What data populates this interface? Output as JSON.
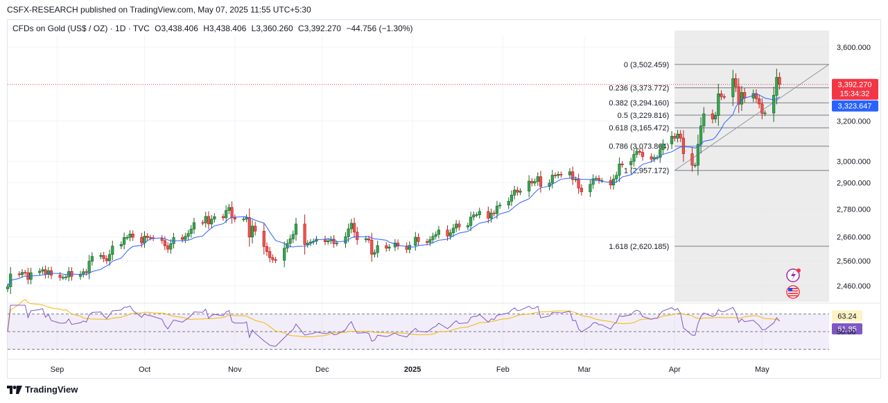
{
  "header": {
    "published_by": "CSFX-RESEARCH published on TradingView.com, May 07, 2025 11:55 UTC+5:30"
  },
  "legend": {
    "symbol": "CFDs on Gold (US$ / OZ) · 1D · TVC",
    "open": "O3,438.406",
    "high": "H3,438.406",
    "low": "L3,360.260",
    "close": "C3,392.270",
    "change": "−44.756 (−1.30%)"
  },
  "footer": {
    "brand": "TradingView",
    "logo": "tv-logo-icon"
  },
  "colors": {
    "up": "#26a69a",
    "up_fill": "#34a853",
    "down": "#ef5350",
    "ma": "#2962ff",
    "rsi": "#7e57c2",
    "rsi_ma": "#f7b500",
    "fib_zone": "#e6e6e6",
    "price_tag": "#f23645",
    "ma_tag": "#2962ff",
    "rsi_tag": "#7e57c2",
    "rsi_ma_tag": "#fff3c4"
  },
  "chart_data": {
    "type": "candlestick",
    "y_scale": "log",
    "y_ticks": [
      "3,600.000",
      "3,200.000",
      "3,000.000",
      "2,900.000",
      "2,780.000",
      "2,660.000",
      "2,560.000",
      "2,460.000"
    ],
    "y_tick_values": [
      3600,
      3200,
      3000,
      2900,
      2780,
      2660,
      2560,
      2460
    ],
    "ylim": [
      2420,
      3720
    ],
    "x_labels": [
      "Sep",
      "Oct",
      "Nov",
      "Dec",
      "2025",
      "Feb",
      "Mar",
      "Apr",
      "May"
    ],
    "x_label_dates": [
      "2024-09-01",
      "2024-10-01",
      "2024-11-01",
      "2024-12-01",
      "2025-01-01",
      "2025-02-01",
      "2025-03-01",
      "2025-04-01",
      "2025-05-01"
    ],
    "x_range": [
      "2024-08-15",
      "2025-05-24"
    ],
    "close_series": [
      [
        "2024-08-15",
        2456
      ],
      [
        "2024-08-16",
        2507
      ],
      [
        "2024-08-19",
        2504
      ],
      [
        "2024-08-20",
        2513
      ],
      [
        "2024-08-21",
        2512
      ],
      [
        "2024-08-22",
        2485
      ],
      [
        "2024-08-23",
        2512
      ],
      [
        "2024-08-26",
        2518
      ],
      [
        "2024-08-27",
        2524
      ],
      [
        "2024-08-28",
        2505
      ],
      [
        "2024-08-29",
        2520
      ],
      [
        "2024-08-30",
        2502
      ],
      [
        "2024-09-02",
        2493
      ],
      [
        "2024-09-03",
        2493
      ],
      [
        "2024-09-04",
        2495
      ],
      [
        "2024-09-05",
        2517
      ],
      [
        "2024-09-06",
        2497
      ],
      [
        "2024-09-09",
        2506
      ],
      [
        "2024-09-10",
        2516
      ],
      [
        "2024-09-11",
        2512
      ],
      [
        "2024-09-12",
        2558
      ],
      [
        "2024-09-13",
        2578
      ],
      [
        "2024-09-16",
        2582
      ],
      [
        "2024-09-17",
        2569
      ],
      [
        "2024-09-18",
        2560
      ],
      [
        "2024-09-19",
        2586
      ],
      [
        "2024-09-20",
        2621
      ],
      [
        "2024-09-23",
        2628
      ],
      [
        "2024-09-24",
        2657
      ],
      [
        "2024-09-25",
        2657
      ],
      [
        "2024-09-26",
        2672
      ],
      [
        "2024-09-27",
        2658
      ],
      [
        "2024-09-30",
        2634
      ],
      [
        "2024-10-01",
        2663
      ],
      [
        "2024-10-02",
        2657
      ],
      [
        "2024-10-03",
        2656
      ],
      [
        "2024-10-04",
        2653
      ],
      [
        "2024-10-07",
        2644
      ],
      [
        "2024-10-08",
        2622
      ],
      [
        "2024-10-09",
        2608
      ],
      [
        "2024-10-10",
        2631
      ],
      [
        "2024-10-11",
        2657
      ],
      [
        "2024-10-14",
        2649
      ],
      [
        "2024-10-15",
        2662
      ],
      [
        "2024-10-16",
        2674
      ],
      [
        "2024-10-17",
        2693
      ],
      [
        "2024-10-18",
        2721
      ],
      [
        "2024-10-21",
        2720
      ],
      [
        "2024-10-22",
        2748
      ],
      [
        "2024-10-23",
        2715
      ],
      [
        "2024-10-24",
        2736
      ],
      [
        "2024-10-25",
        2747
      ],
      [
        "2024-10-28",
        2742
      ],
      [
        "2024-10-29",
        2774
      ],
      [
        "2024-10-30",
        2788
      ],
      [
        "2024-10-31",
        2743
      ],
      [
        "2024-11-01",
        2736
      ],
      [
        "2024-11-04",
        2736
      ],
      [
        "2024-11-05",
        2743
      ],
      [
        "2024-11-06",
        2659
      ],
      [
        "2024-11-07",
        2706
      ],
      [
        "2024-11-08",
        2684
      ],
      [
        "2024-11-11",
        2619
      ],
      [
        "2024-11-12",
        2598
      ],
      [
        "2024-11-13",
        2573
      ],
      [
        "2024-11-14",
        2565
      ],
      [
        "2024-11-15",
        2562
      ],
      [
        "2024-11-18",
        2612
      ],
      [
        "2024-11-19",
        2632
      ],
      [
        "2024-11-20",
        2651
      ],
      [
        "2024-11-21",
        2670
      ],
      [
        "2024-11-22",
        2715
      ],
      [
        "2024-11-25",
        2627
      ],
      [
        "2024-11-26",
        2633
      ],
      [
        "2024-11-27",
        2638
      ],
      [
        "2024-11-28",
        2641
      ],
      [
        "2024-11-29",
        2650
      ],
      [
        "2024-12-02",
        2639
      ],
      [
        "2024-12-03",
        2643
      ],
      [
        "2024-12-04",
        2650
      ],
      [
        "2024-12-05",
        2631
      ],
      [
        "2024-12-06",
        2633
      ],
      [
        "2024-12-09",
        2660
      ],
      [
        "2024-12-10",
        2694
      ],
      [
        "2024-12-11",
        2718
      ],
      [
        "2024-12-12",
        2680
      ],
      [
        "2024-12-13",
        2648
      ],
      [
        "2024-12-16",
        2652
      ],
      [
        "2024-12-17",
        2646
      ],
      [
        "2024-12-18",
        2587
      ],
      [
        "2024-12-19",
        2594
      ],
      [
        "2024-12-20",
        2623
      ],
      [
        "2024-12-23",
        2612
      ],
      [
        "2024-12-24",
        2617
      ],
      [
        "2024-12-26",
        2634
      ],
      [
        "2024-12-27",
        2621
      ],
      [
        "2024-12-30",
        2607
      ],
      [
        "2024-12-31",
        2624
      ],
      [
        "2025-01-02",
        2658
      ],
      [
        "2025-01-03",
        2640
      ],
      [
        "2025-01-06",
        2636
      ],
      [
        "2025-01-07",
        2648
      ],
      [
        "2025-01-08",
        2662
      ],
      [
        "2025-01-09",
        2670
      ],
      [
        "2025-01-10",
        2689
      ],
      [
        "2025-01-13",
        2663
      ],
      [
        "2025-01-14",
        2677
      ],
      [
        "2025-01-15",
        2697
      ],
      [
        "2025-01-16",
        2715
      ],
      [
        "2025-01-17",
        2702
      ],
      [
        "2025-01-20",
        2708
      ],
      [
        "2025-01-21",
        2745
      ],
      [
        "2025-01-22",
        2755
      ],
      [
        "2025-01-23",
        2755
      ],
      [
        "2025-01-24",
        2770
      ],
      [
        "2025-01-27",
        2740
      ],
      [
        "2025-01-28",
        2763
      ],
      [
        "2025-01-29",
        2760
      ],
      [
        "2025-01-30",
        2794
      ],
      [
        "2025-01-31",
        2798
      ],
      [
        "2025-02-03",
        2815
      ],
      [
        "2025-02-04",
        2843
      ],
      [
        "2025-02-05",
        2866
      ],
      [
        "2025-02-06",
        2856
      ],
      [
        "2025-02-07",
        2861
      ],
      [
        "2025-02-10",
        2907
      ],
      [
        "2025-02-11",
        2898
      ],
      [
        "2025-02-12",
        2905
      ],
      [
        "2025-02-13",
        2928
      ],
      [
        "2025-02-14",
        2882
      ],
      [
        "2025-02-17",
        2898
      ],
      [
        "2025-02-18",
        2935
      ],
      [
        "2025-02-19",
        2933
      ],
      [
        "2025-02-20",
        2939
      ],
      [
        "2025-02-21",
        2936
      ],
      [
        "2025-02-24",
        2951
      ],
      [
        "2025-02-25",
        2914
      ],
      [
        "2025-02-26",
        2916
      ],
      [
        "2025-02-27",
        2875
      ],
      [
        "2025-02-28",
        2858
      ],
      [
        "2025-03-03",
        2892
      ],
      [
        "2025-03-04",
        2918
      ],
      [
        "2025-03-05",
        2920
      ],
      [
        "2025-03-06",
        2910
      ],
      [
        "2025-03-07",
        2910
      ],
      [
        "2025-03-10",
        2889
      ],
      [
        "2025-03-11",
        2917
      ],
      [
        "2025-03-12",
        2934
      ],
      [
        "2025-03-13",
        2988
      ],
      [
        "2025-03-14",
        2984
      ],
      [
        "2025-03-17",
        3000
      ],
      [
        "2025-03-18",
        3034
      ],
      [
        "2025-03-19",
        3049
      ],
      [
        "2025-03-20",
        3044
      ],
      [
        "2025-03-21",
        3023
      ],
      [
        "2025-03-24",
        3011
      ],
      [
        "2025-03-25",
        3019
      ],
      [
        "2025-03-26",
        3019
      ],
      [
        "2025-03-27",
        3057
      ],
      [
        "2025-03-28",
        3085
      ],
      [
        "2025-03-31",
        3123
      ],
      [
        "2025-04-01",
        3113
      ],
      [
        "2025-04-02",
        3134
      ],
      [
        "2025-04-03",
        3114
      ],
      [
        "2025-04-04",
        3037
      ],
      [
        "2025-04-07",
        2982
      ],
      [
        "2025-04-08",
        2982
      ],
      [
        "2025-04-09",
        3083
      ],
      [
        "2025-04-10",
        3175
      ],
      [
        "2025-04-11",
        3237
      ],
      [
        "2025-04-14",
        3210
      ],
      [
        "2025-04-15",
        3228
      ],
      [
        "2025-04-16",
        3342
      ],
      [
        "2025-04-17",
        3327
      ],
      [
        "2025-04-18",
        3326
      ],
      [
        "2025-04-21",
        3424
      ],
      [
        "2025-04-22",
        3380
      ],
      [
        "2025-04-23",
        3287
      ],
      [
        "2025-04-24",
        3349
      ],
      [
        "2025-04-25",
        3319
      ],
      [
        "2025-04-28",
        3343
      ],
      [
        "2025-04-29",
        3316
      ],
      [
        "2025-04-30",
        3288
      ],
      [
        "2025-05-01",
        3239
      ],
      [
        "2025-05-02",
        3241
      ],
      [
        "2025-05-05",
        3334
      ],
      [
        "2025-05-06",
        3431
      ],
      [
        "2025-05-07",
        3392
      ]
    ],
    "annotations": {
      "fib_levels": [
        {
          "label": "0 (3,502.459)",
          "value": 3502.459
        },
        {
          "label": "0.236 (3,373.772)",
          "value": 3373.772
        },
        {
          "label": "0.382 (3,294.160)",
          "value": 3294.16
        },
        {
          "label": "0.5 (3,229.816)",
          "value": 3229.816
        },
        {
          "label": "0.618 (3,165.472)",
          "value": 3165.472
        },
        {
          "label": "0.786 (3,073.864)",
          "value": 3073.864
        },
        {
          "label": "1 (2,957.172)",
          "value": 2957.172
        },
        {
          "label": "1.618 (2,620.185)",
          "value": 2620.185
        }
      ],
      "fib_range_dates": [
        "2025-04-01",
        "2025-05-24"
      ],
      "fib_trendline": {
        "from": [
          "2025-04-01",
          2957.172
        ],
        "to": [
          "2025-05-24",
          3502.459
        ]
      }
    },
    "price_tag": {
      "value": "3,392.270",
      "countdown": "15:34:32",
      "numeric": 3392.27
    },
    "ma_tag": {
      "value": "3,323.647",
      "numeric": 3323.647
    },
    "rsi": {
      "levels": [
        70,
        50,
        30
      ],
      "tick": "50.00",
      "value_tag": "61.85",
      "ma_tag": "63.24",
      "ma_numeric": 63.24,
      "value_numeric": 61.85,
      "ylim": [
        25,
        80
      ]
    }
  }
}
